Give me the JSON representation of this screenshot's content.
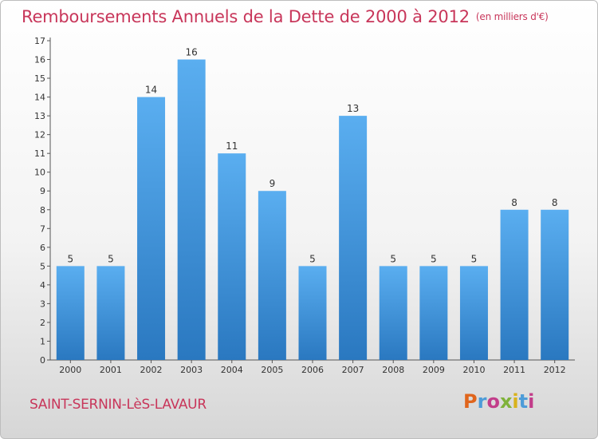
{
  "header": {
    "title": "Remboursements Annuels de la Dette de 2000 à 2012",
    "unit": "(en milliers d'€)"
  },
  "footer": {
    "town": "SAINT-SERNIN-LèS-LAVAUR",
    "logo": "Proxiti",
    "logo_colors": [
      "#e0651c",
      "#4d9cd8",
      "#c23d8a",
      "#7fb23a",
      "#d8b21c",
      "#4d9cd8",
      "#c23d8a"
    ]
  },
  "colors": {
    "bar_top": "#5aaef0",
    "bar_bottom": "#2a78c0",
    "title": "#c8365a"
  },
  "chart_data": {
    "type": "bar",
    "title": "Remboursements Annuels de la Dette de 2000 à 2012",
    "xlabel": "",
    "ylabel": "",
    "categories": [
      "2000",
      "2001",
      "2002",
      "2003",
      "2004",
      "2005",
      "2006",
      "2007",
      "2008",
      "2009",
      "2010",
      "2011",
      "2012"
    ],
    "values": [
      5,
      5,
      14,
      16,
      11,
      9,
      5,
      13,
      5,
      5,
      5,
      8,
      8
    ],
    "ylim": [
      0,
      17
    ],
    "yticks": [
      0,
      1,
      2,
      3,
      4,
      5,
      6,
      7,
      8,
      9,
      10,
      11,
      12,
      13,
      14,
      15,
      16,
      17
    ],
    "grid": false,
    "legend": "none"
  }
}
